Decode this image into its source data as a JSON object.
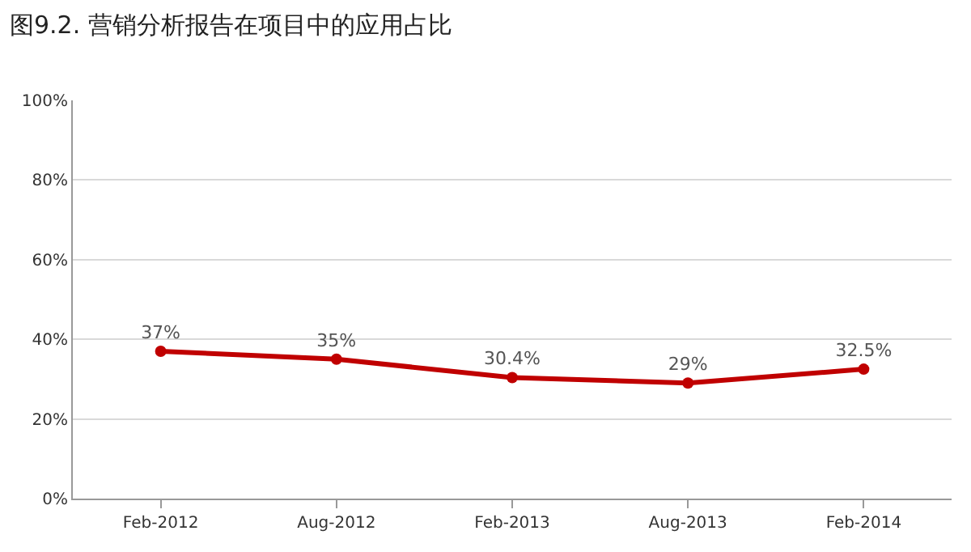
{
  "chart_data": {
    "type": "line",
    "title": "图9.2. 营销分析报告在项目中的应用占比",
    "categories": [
      "Feb-2012",
      "Aug-2012",
      "Feb-2013",
      "Aug-2013",
      "Feb-2014"
    ],
    "series": [
      {
        "color": "#c00000",
        "values": [
          37,
          35,
          30.4,
          29,
          32.5
        ],
        "value_labels": [
          "37%",
          "35%",
          "30.4%",
          "29%",
          "32.5%"
        ]
      }
    ],
    "ylim": [
      0,
      100
    ],
    "yticks": [
      {
        "value": 0,
        "label": "0%"
      },
      {
        "value": 20,
        "label": "20%"
      },
      {
        "value": 40,
        "label": "40%"
      },
      {
        "value": 60,
        "label": "60%"
      },
      {
        "value": 80,
        "label": "80%"
      },
      {
        "value": 100,
        "label": "100%"
      }
    ],
    "grid": "y",
    "legend": false,
    "marker": "circle",
    "line_style": "solid"
  }
}
